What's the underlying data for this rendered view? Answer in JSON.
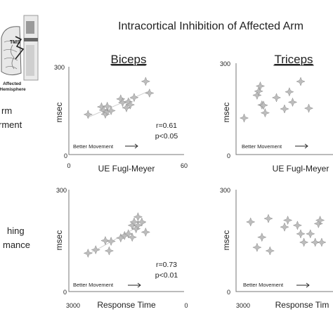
{
  "figure": {
    "title": "Intracortical Inhibition of Affected Arm",
    "left_labels": [
      "rm",
      "rment",
      "hing",
      "mance"
    ],
    "inset": {
      "tms_label": "TMS",
      "hemisphere_label": "Affected\nHemisphere"
    }
  },
  "chart_data": [
    {
      "type": "scatter",
      "title": "Biceps",
      "xlabel": "UE Fugl-Meyer",
      "ylabel": "msec",
      "xlim": [
        0,
        60
      ],
      "ylim": [
        0,
        300
      ],
      "x_ticks": [
        "0",
        "60"
      ],
      "y_ticks": [
        "0",
        "300"
      ],
      "stats": [
        "r=0.61",
        "p<0.05"
      ],
      "annotation": "Better Movement",
      "trend": true,
      "points": [
        [
          10,
          137
        ],
        [
          17,
          163
        ],
        [
          18,
          152
        ],
        [
          19,
          138
        ],
        [
          20,
          147
        ],
        [
          20,
          165
        ],
        [
          22,
          150
        ],
        [
          27,
          190
        ],
        [
          28,
          178
        ],
        [
          30,
          160
        ],
        [
          31,
          180
        ],
        [
          32,
          170
        ],
        [
          34,
          195
        ],
        [
          40,
          250
        ],
        [
          42,
          210
        ]
      ]
    },
    {
      "type": "scatter",
      "title": "Triceps",
      "xlabel": "UE Fugl-Meyer",
      "ylabel": "msec",
      "xlim": [
        0,
        60
      ],
      "ylim": [
        0,
        300
      ],
      "x_ticks": [],
      "y_ticks": [
        "0",
        "300"
      ],
      "stats": [],
      "annotation": "Better Movement",
      "trend": false,
      "points": [
        [
          5,
          120
        ],
        [
          13,
          195
        ],
        [
          14,
          208
        ],
        [
          15,
          225
        ],
        [
          16,
          163
        ],
        [
          17,
          162
        ],
        [
          18,
          137
        ],
        [
          25,
          187
        ],
        [
          30,
          150
        ],
        [
          33,
          206
        ],
        [
          35,
          172
        ],
        [
          40,
          240
        ],
        [
          45,
          152
        ]
      ]
    },
    {
      "type": "scatter",
      "title": "",
      "xlabel": "Response Time",
      "ylabel": "msec",
      "xlim": [
        3000,
        0
      ],
      "ylim": [
        0,
        300
      ],
      "x_ticks": [
        "3000",
        "0"
      ],
      "y_ticks": [
        "0",
        "300"
      ],
      "stats": [
        "r=0.73",
        "p<0.01"
      ],
      "annotation": "Better Movement",
      "trend": true,
      "points": [
        [
          2500,
          113
        ],
        [
          2300,
          123
        ],
        [
          2050,
          150
        ],
        [
          1950,
          120
        ],
        [
          1900,
          148
        ],
        [
          1650,
          158
        ],
        [
          1550,
          165
        ],
        [
          1450,
          170
        ],
        [
          1350,
          160
        ],
        [
          1350,
          195
        ],
        [
          1300,
          205
        ],
        [
          1250,
          185
        ],
        [
          1200,
          220
        ],
        [
          1200,
          195
        ],
        [
          1100,
          205
        ],
        [
          1000,
          175
        ]
      ]
    },
    {
      "type": "scatter",
      "title": "",
      "xlabel": "Response Tim",
      "ylabel": "msec",
      "xlim": [
        3000,
        0
      ],
      "ylim": [
        0,
        300
      ],
      "x_ticks": [
        "3000"
      ],
      "y_ticks": [
        "0",
        "300"
      ],
      "stats": [],
      "annotation": "Better Movement",
      "trend": false,
      "points": [
        [
          2550,
          205
        ],
        [
          2350,
          130
        ],
        [
          2200,
          160
        ],
        [
          2000,
          215
        ],
        [
          1950,
          120
        ],
        [
          1500,
          190
        ],
        [
          1400,
          210
        ],
        [
          1100,
          195
        ],
        [
          1000,
          170
        ],
        [
          900,
          145
        ],
        [
          700,
          170
        ],
        [
          550,
          145
        ],
        [
          450,
          200
        ],
        [
          400,
          210
        ],
        [
          350,
          145
        ]
      ]
    }
  ]
}
